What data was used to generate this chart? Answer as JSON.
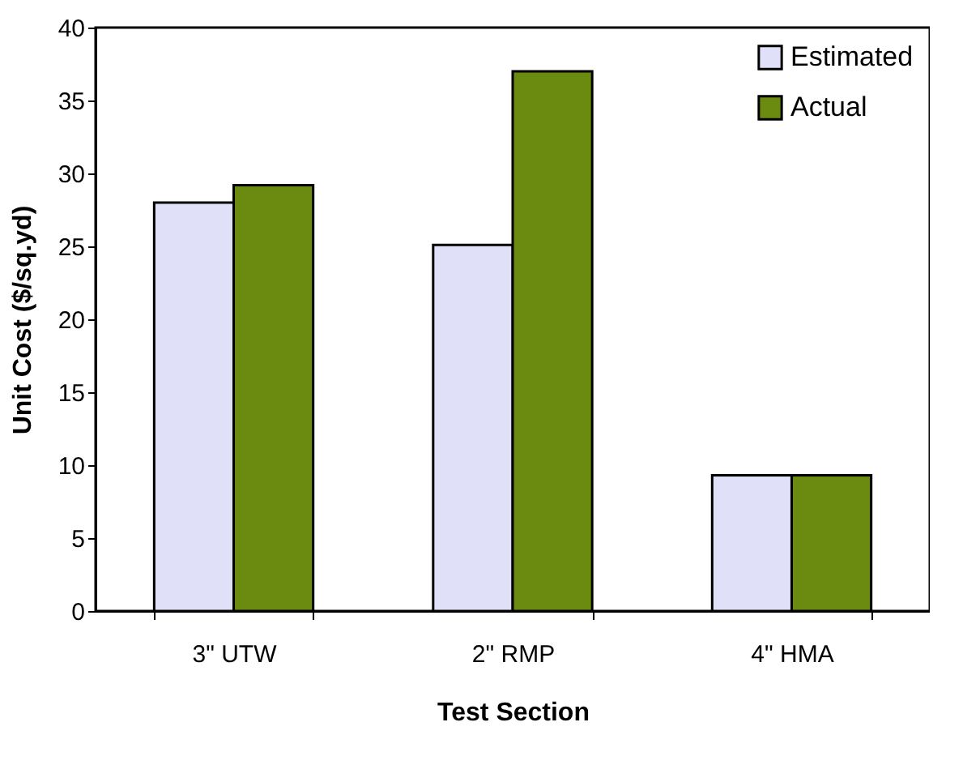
{
  "chart_data": {
    "type": "bar",
    "xlabel": "Test Section",
    "ylabel": "Unit Cost ($/sq.yd)",
    "categories": [
      "3\" UTW",
      "2\" RMP",
      "4\" HMA"
    ],
    "series": [
      {
        "name": "Estimated",
        "color": "#e0e0f8",
        "values": [
          28.0,
          25.1,
          9.3
        ]
      },
      {
        "name": "Actual",
        "color": "#6b8a10",
        "values": [
          29.2,
          37.0,
          9.3
        ]
      }
    ],
    "ylim": [
      0,
      40
    ],
    "yticks": [
      0,
      5,
      10,
      15,
      20,
      25,
      30,
      35,
      40
    ],
    "grid": false,
    "legend": "top right"
  }
}
